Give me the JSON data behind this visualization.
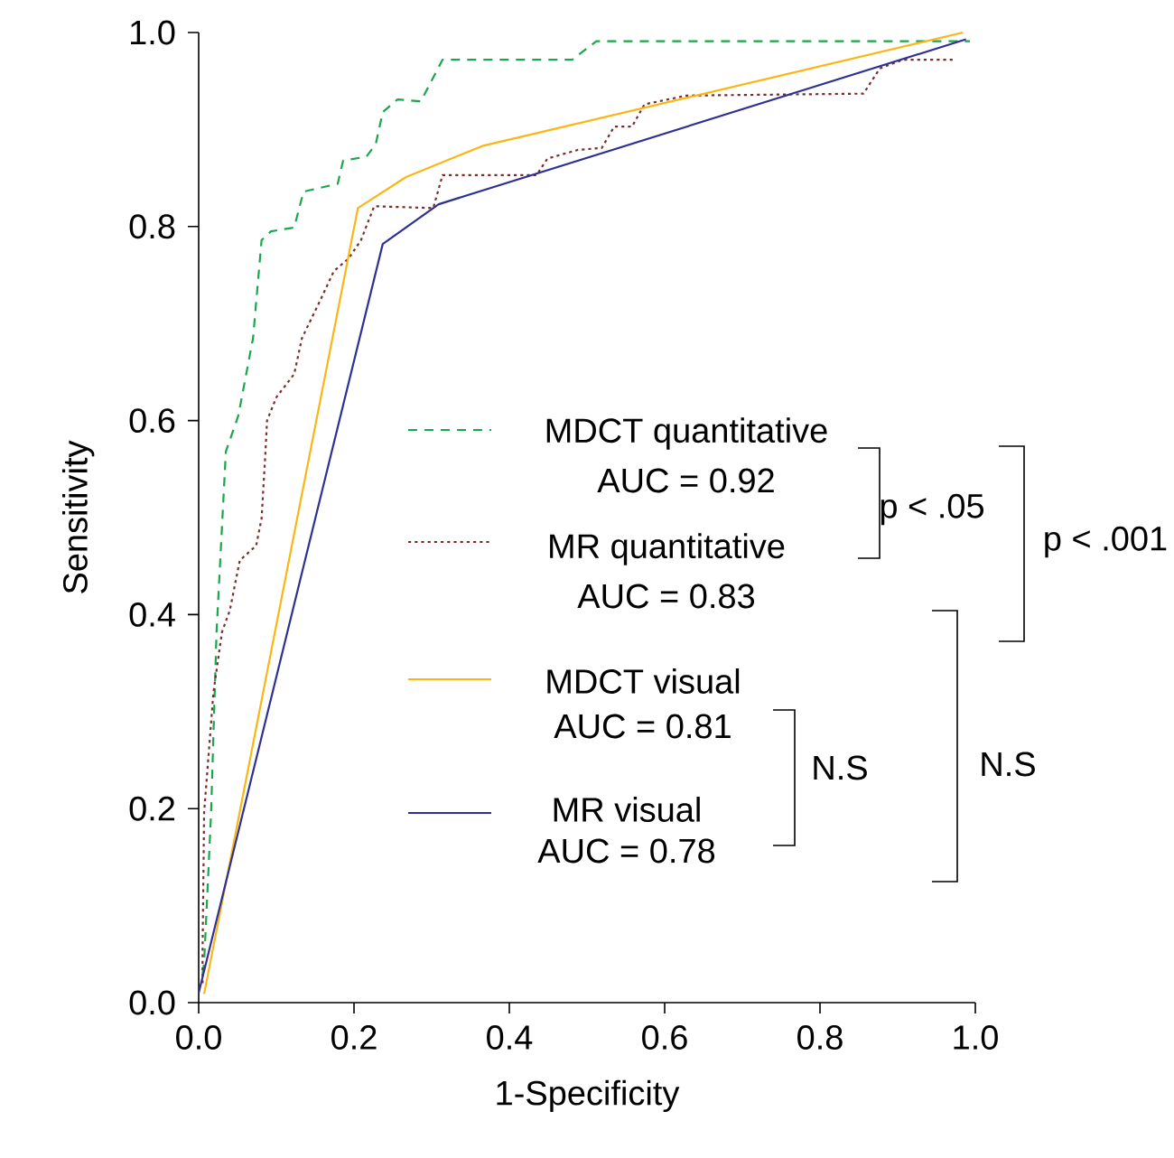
{
  "chart_data": {
    "type": "line",
    "xlabel": "1-Specificity",
    "ylabel": "Sensitivity",
    "xlim": [
      0,
      1
    ],
    "ylim": [
      0,
      1
    ],
    "xticks": [
      {
        "value": 0,
        "label": "0.0"
      },
      {
        "value": 0.2,
        "label": "0.2"
      },
      {
        "value": 0.4,
        "label": "0.4"
      },
      {
        "value": 0.6,
        "label": "0.6"
      },
      {
        "value": 0.8,
        "label": "0.8"
      },
      {
        "value": 1,
        "label": "1.0"
      }
    ],
    "yticks": [
      {
        "value": 0,
        "label": "0.0"
      },
      {
        "value": 0.2,
        "label": "0.2"
      },
      {
        "value": 0.4,
        "label": "0.4"
      },
      {
        "value": 0.6,
        "label": "0.6"
      },
      {
        "value": 0.8,
        "label": "0.8"
      },
      {
        "value": 1,
        "label": "1.0"
      }
    ],
    "legend": "center",
    "series": [
      {
        "name": "MDCT quantitative",
        "color": "#1aa64b",
        "line_style": "dashed",
        "x": [
          0.005,
          0.007,
          0.016,
          0.023,
          0.035,
          0.051,
          0.07,
          0.081,
          0.093,
          0.123,
          0.135,
          0.179,
          0.186,
          0.216,
          0.228,
          0.237,
          0.256,
          0.286,
          0.314,
          0.481,
          0.512,
          0.993
        ],
        "values": [
          0.03,
          0.041,
          0.196,
          0.382,
          0.568,
          0.605,
          0.685,
          0.786,
          0.795,
          0.799,
          0.836,
          0.844,
          0.868,
          0.872,
          0.885,
          0.918,
          0.931,
          0.929,
          0.972,
          0.972,
          0.991,
          0.991
        ]
      },
      {
        "name": "MR quantitative",
        "color": "#7b2d2a",
        "line_style": "dotted",
        "x": [
          0.005,
          0.005,
          0.007,
          0.019,
          0.03,
          0.04,
          0.053,
          0.074,
          0.081,
          0.086,
          0.088,
          0.1,
          0.123,
          0.133,
          0.156,
          0.174,
          0.193,
          0.209,
          0.226,
          0.302,
          0.314,
          0.435,
          0.449,
          0.488,
          0.519,
          0.535,
          0.558,
          0.574,
          0.628,
          0.856,
          0.877,
          0.907,
          0.972
        ],
        "values": [
          0.02,
          0.05,
          0.196,
          0.32,
          0.382,
          0.404,
          0.456,
          0.471,
          0.499,
          0.568,
          0.6,
          0.624,
          0.648,
          0.685,
          0.723,
          0.754,
          0.767,
          0.786,
          0.821,
          0.819,
          0.853,
          0.853,
          0.87,
          0.879,
          0.881,
          0.903,
          0.903,
          0.926,
          0.935,
          0.937,
          0.963,
          0.972,
          0.972
        ]
      },
      {
        "name": "MDCT visual",
        "color": "#fbb514",
        "line_style": "solid",
        "x": [
          0.007,
          0.205,
          0.267,
          0.365,
          0.984
        ],
        "values": [
          0.009,
          0.819,
          0.851,
          0.883,
          1.0
        ]
      },
      {
        "name": "MR visual",
        "color": "#2e3192",
        "line_style": "solid",
        "x": [
          0.0,
          0.237,
          0.309,
          0.988
        ],
        "values": [
          0.01,
          0.782,
          0.823,
          0.993
        ]
      }
    ],
    "annotations": [
      "AUC = 0.92",
      "AUC = 0.83",
      "AUC = 0.81",
      "AUC = 0.78",
      "p < .05",
      "p < .001",
      "N.S",
      "N.S"
    ]
  }
}
